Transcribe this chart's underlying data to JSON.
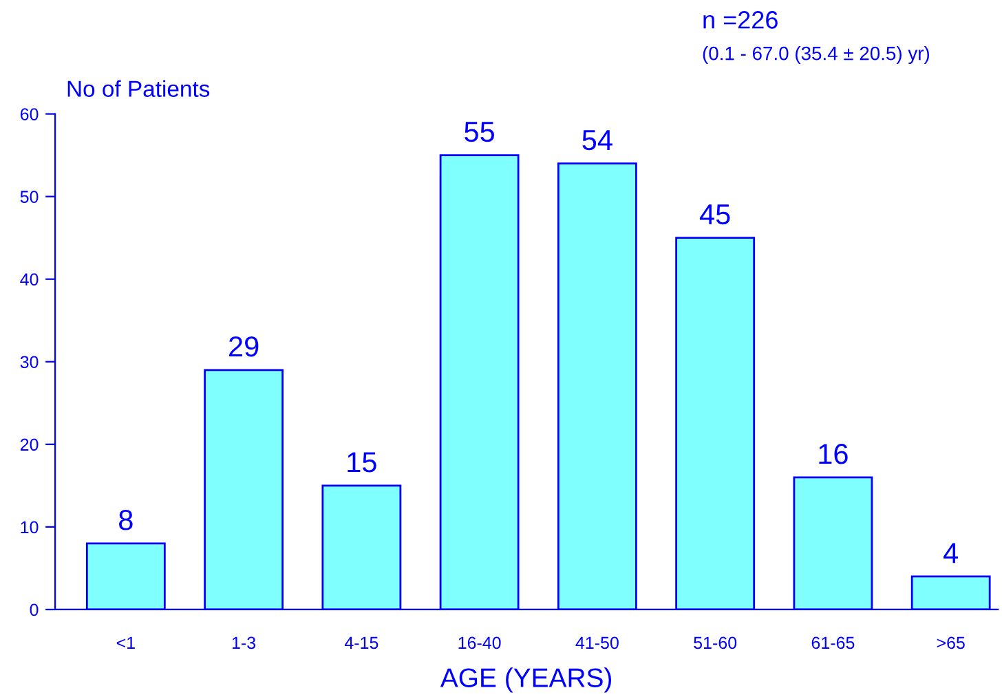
{
  "chart_data": {
    "type": "bar",
    "categories": [
      "<1",
      "1-3",
      "4-15",
      "16-40",
      "41-50",
      "51-60",
      "61-65",
      ">65"
    ],
    "values": [
      8,
      29,
      15,
      55,
      54,
      45,
      16,
      4
    ],
    "color": "#80ffff",
    "ylim": [
      0,
      60
    ],
    "yticks": [
      0,
      10,
      20,
      30,
      40,
      50,
      60
    ],
    "ylabel": "No of Patients",
    "xlabel": "AGE (YEARS)",
    "annotations": [
      "n =226",
      "(0.1 - 67.0 (35.4 ± 20.5) yr)"
    ],
    "data_labels": true,
    "grid": false,
    "legend": false
  }
}
